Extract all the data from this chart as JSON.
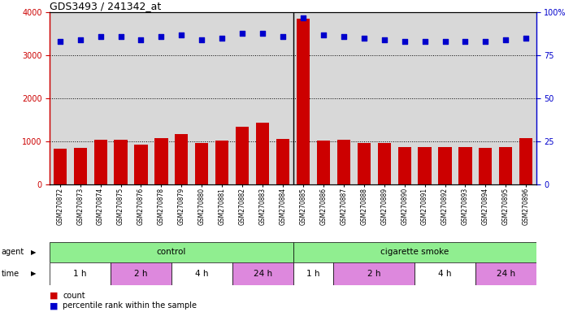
{
  "title": "GDS3493 / 241342_at",
  "samples": [
    "GSM270872",
    "GSM270873",
    "GSM270874",
    "GSM270875",
    "GSM270876",
    "GSM270878",
    "GSM270879",
    "GSM270880",
    "GSM270881",
    "GSM270882",
    "GSM270883",
    "GSM270884",
    "GSM270885",
    "GSM270886",
    "GSM270887",
    "GSM270888",
    "GSM270889",
    "GSM270890",
    "GSM270891",
    "GSM270892",
    "GSM270893",
    "GSM270894",
    "GSM270895",
    "GSM270896"
  ],
  "counts": [
    820,
    850,
    1030,
    1030,
    920,
    1070,
    1160,
    950,
    1010,
    1340,
    1440,
    1060,
    3850,
    1010,
    1040,
    960,
    960,
    870,
    870,
    870,
    870,
    850,
    860,
    1080
  ],
  "percentiles": [
    83,
    84,
    86,
    86,
    84,
    86,
    87,
    84,
    85,
    88,
    88,
    86,
    97,
    87,
    86,
    85,
    84,
    83,
    83,
    83,
    83,
    83,
    84,
    85
  ],
  "bar_color": "#cc0000",
  "dot_color": "#0000cc",
  "ylim_left": [
    0,
    4000
  ],
  "ylim_right": [
    0,
    100
  ],
  "yticks_left": [
    0,
    1000,
    2000,
    3000,
    4000
  ],
  "yticks_right": [
    0,
    25,
    50,
    75,
    100
  ],
  "legend_count_label": "count",
  "legend_pct_label": "percentile rank within the sample",
  "background_color": "#ffffff",
  "plot_bg_color": "#d8d8d8",
  "time_blocks": [
    {
      "start": 0,
      "end": 3,
      "label": "1 h",
      "color": "#ffffff"
    },
    {
      "start": 3,
      "end": 6,
      "label": "2 h",
      "color": "#dd88dd"
    },
    {
      "start": 6,
      "end": 9,
      "label": "4 h",
      "color": "#ffffff"
    },
    {
      "start": 9,
      "end": 12,
      "label": "24 h",
      "color": "#dd88dd"
    },
    {
      "start": 12,
      "end": 14,
      "label": "1 h",
      "color": "#ffffff"
    },
    {
      "start": 14,
      "end": 18,
      "label": "2 h",
      "color": "#dd88dd"
    },
    {
      "start": 18,
      "end": 21,
      "label": "4 h",
      "color": "#ffffff"
    },
    {
      "start": 21,
      "end": 24,
      "label": "24 h",
      "color": "#dd88dd"
    }
  ],
  "agent_blocks": [
    {
      "start": 0,
      "end": 12,
      "label": "control",
      "color": "#90ee90"
    },
    {
      "start": 12,
      "end": 24,
      "label": "cigarette smoke",
      "color": "#90ee90"
    }
  ],
  "separator": 11.5
}
